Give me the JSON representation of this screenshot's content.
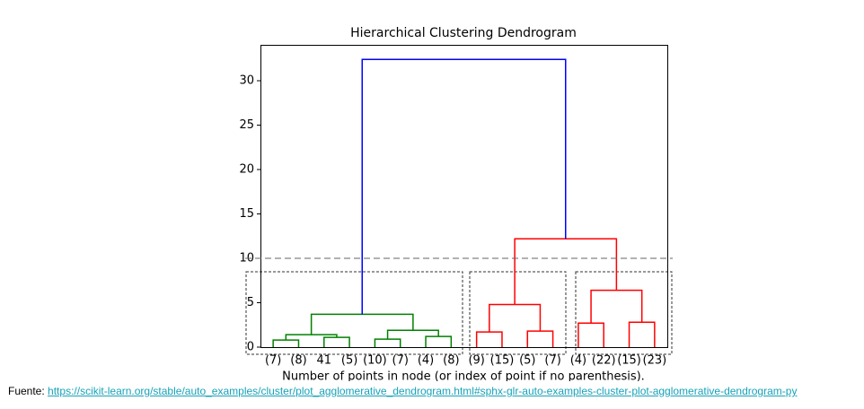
{
  "chart_data": {
    "type": "dendrogram",
    "title": "Hierarchical Clustering Dendrogram",
    "x_label": "Number of points in node (or index of point if no parenthesis).",
    "leaves": [
      "(7)",
      "(8)",
      "41",
      "(5)",
      "(10)",
      "(7)",
      "(4)",
      "(8)",
      "(9)",
      "(15)",
      "(5)",
      "(7)",
      "(4)",
      "(22)",
      "(15)",
      "(23)"
    ],
    "merges": [
      {
        "children": [
          0,
          1
        ],
        "height": 0.8,
        "color": "#008000"
      },
      {
        "children": [
          2,
          3
        ],
        "height": 1.1,
        "color": "#008000"
      },
      {
        "children": [
          16,
          17
        ],
        "height": 1.4,
        "color": "#008000"
      },
      {
        "children": [
          4,
          5
        ],
        "height": 0.9,
        "color": "#008000"
      },
      {
        "children": [
          6,
          7
        ],
        "height": 1.2,
        "color": "#008000"
      },
      {
        "children": [
          19,
          20
        ],
        "height": 1.9,
        "color": "#008000"
      },
      {
        "children": [
          18,
          21
        ],
        "height": 3.7,
        "color": "#008000"
      },
      {
        "children": [
          8,
          9
        ],
        "height": 1.7,
        "color": "#ff0000"
      },
      {
        "children": [
          10,
          11
        ],
        "height": 1.8,
        "color": "#ff0000"
      },
      {
        "children": [
          23,
          24
        ],
        "height": 4.8,
        "color": "#ff0000"
      },
      {
        "children": [
          12,
          13
        ],
        "height": 2.7,
        "color": "#ff0000"
      },
      {
        "children": [
          14,
          15
        ],
        "height": 2.8,
        "color": "#ff0000"
      },
      {
        "children": [
          26,
          27
        ],
        "height": 6.4,
        "color": "#ff0000"
      },
      {
        "children": [
          25,
          28
        ],
        "height": 12.2,
        "color": "#ff0000"
      },
      {
        "children": [
          22,
          29
        ],
        "height": 32.4,
        "color": "#0000ff"
      }
    ],
    "cut_height": 10,
    "ylim": [
      0,
      34.04
    ],
    "yticks": [
      0,
      5,
      10,
      15,
      20,
      25,
      30
    ]
  },
  "source": {
    "prefix": "Fuente:",
    "url": "https://scikit-learn.org/stable/auto_examples/cluster/plot_agglomerative_dendrogram.html#sphx-glr-auto-examples-cluster-plot-agglomerative-dendrogram-py"
  }
}
